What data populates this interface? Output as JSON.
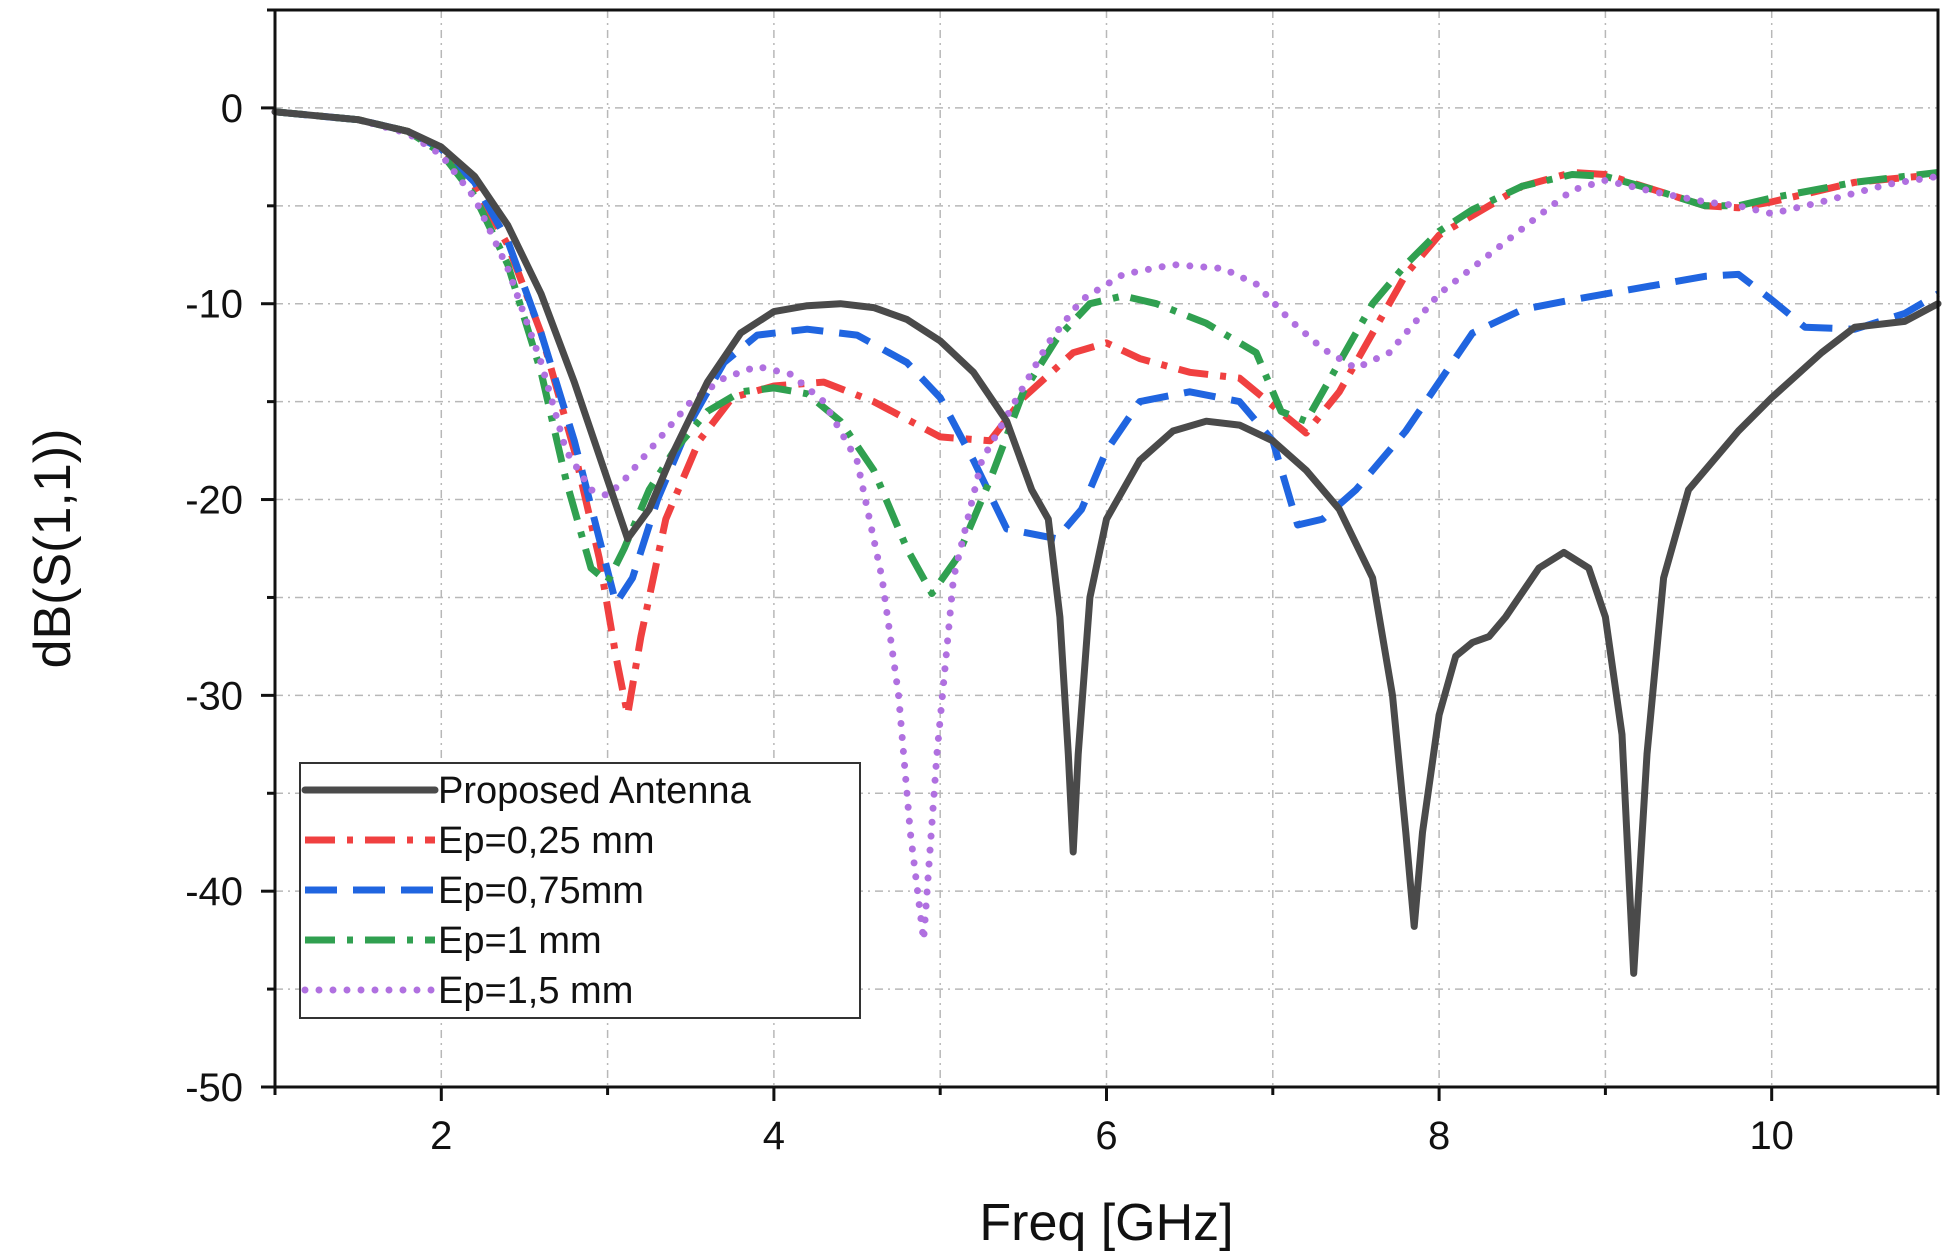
{
  "chart_data": {
    "type": "line",
    "title": "",
    "xlabel": "Freq [GHz]",
    "ylabel": "dB(S(1,1))",
    "xlim": [
      1,
      11
    ],
    "ylim": [
      -50,
      5
    ],
    "x_ticks": [
      2,
      4,
      6,
      8,
      10
    ],
    "x_tick_labels": [
      "2",
      "4",
      "6",
      "8",
      "10"
    ],
    "y_ticks": [
      0,
      -10,
      -20,
      -30,
      -40,
      -50
    ],
    "y_tick_labels": [
      "0",
      "-10",
      "-20",
      "-30",
      "-40",
      "-50"
    ],
    "grid": true,
    "legend_position": "bottom-left",
    "series": [
      {
        "name": "Proposed Antenna",
        "color": "#4a4a4a",
        "style": "solid",
        "points": [
          [
            1.0,
            -0.2
          ],
          [
            1.5,
            -0.6
          ],
          [
            1.8,
            -1.2
          ],
          [
            2.0,
            -2.0
          ],
          [
            2.2,
            -3.5
          ],
          [
            2.4,
            -6.0
          ],
          [
            2.6,
            -9.5
          ],
          [
            2.8,
            -14.0
          ],
          [
            3.0,
            -19.0
          ],
          [
            3.12,
            -22.0
          ],
          [
            3.25,
            -20.5
          ],
          [
            3.4,
            -17.5
          ],
          [
            3.6,
            -14.0
          ],
          [
            3.8,
            -11.5
          ],
          [
            4.0,
            -10.4
          ],
          [
            4.2,
            -10.1
          ],
          [
            4.4,
            -10.0
          ],
          [
            4.6,
            -10.2
          ],
          [
            4.8,
            -10.8
          ],
          [
            5.0,
            -11.9
          ],
          [
            5.2,
            -13.5
          ],
          [
            5.4,
            -16.0
          ],
          [
            5.55,
            -19.5
          ],
          [
            5.65,
            -21.0
          ],
          [
            5.72,
            -26.0
          ],
          [
            5.77,
            -33.0
          ],
          [
            5.8,
            -38.0
          ],
          [
            5.83,
            -33.0
          ],
          [
            5.9,
            -25.0
          ],
          [
            6.0,
            -21.0
          ],
          [
            6.2,
            -18.0
          ],
          [
            6.4,
            -16.5
          ],
          [
            6.6,
            -16.0
          ],
          [
            6.8,
            -16.2
          ],
          [
            7.0,
            -17.0
          ],
          [
            7.2,
            -18.5
          ],
          [
            7.4,
            -20.5
          ],
          [
            7.6,
            -24.0
          ],
          [
            7.72,
            -30.0
          ],
          [
            7.8,
            -37.0
          ],
          [
            7.85,
            -41.8
          ],
          [
            7.9,
            -37.0
          ],
          [
            8.0,
            -31.0
          ],
          [
            8.1,
            -28.0
          ],
          [
            8.2,
            -27.3
          ],
          [
            8.3,
            -27.0
          ],
          [
            8.4,
            -26.0
          ],
          [
            8.6,
            -23.5
          ],
          [
            8.75,
            -22.7
          ],
          [
            8.9,
            -23.5
          ],
          [
            9.0,
            -26.0
          ],
          [
            9.1,
            -32.0
          ],
          [
            9.17,
            -44.2
          ],
          [
            9.25,
            -33.0
          ],
          [
            9.35,
            -24.0
          ],
          [
            9.5,
            -19.5
          ],
          [
            9.8,
            -16.5
          ],
          [
            10.0,
            -14.8
          ],
          [
            10.3,
            -12.5
          ],
          [
            10.5,
            -11.2
          ],
          [
            10.8,
            -10.9
          ],
          [
            11.0,
            -10.0
          ]
        ]
      },
      {
        "name": "Ep=0,25 mm",
        "color": "#f04040",
        "style": "dash-dot",
        "points": [
          [
            1.0,
            -0.2
          ],
          [
            1.5,
            -0.6
          ],
          [
            1.8,
            -1.2
          ],
          [
            2.0,
            -2.2
          ],
          [
            2.2,
            -4.0
          ],
          [
            2.4,
            -7.0
          ],
          [
            2.6,
            -11.5
          ],
          [
            2.8,
            -17.5
          ],
          [
            2.95,
            -23.0
          ],
          [
            3.05,
            -28.0
          ],
          [
            3.12,
            -31.0
          ],
          [
            3.2,
            -27.0
          ],
          [
            3.35,
            -21.0
          ],
          [
            3.55,
            -17.0
          ],
          [
            3.75,
            -14.8
          ],
          [
            4.0,
            -14.2
          ],
          [
            4.3,
            -14.0
          ],
          [
            4.6,
            -15.0
          ],
          [
            5.0,
            -16.8
          ],
          [
            5.3,
            -17.0
          ],
          [
            5.5,
            -14.8
          ],
          [
            5.8,
            -12.5
          ],
          [
            6.0,
            -12.0
          ],
          [
            6.2,
            -12.8
          ],
          [
            6.5,
            -13.5
          ],
          [
            6.8,
            -13.8
          ],
          [
            7.0,
            -15.2
          ],
          [
            7.2,
            -16.6
          ],
          [
            7.4,
            -14.5
          ],
          [
            7.6,
            -11.5
          ],
          [
            7.8,
            -8.5
          ],
          [
            8.0,
            -6.5
          ],
          [
            8.2,
            -5.5
          ],
          [
            8.5,
            -4.0
          ],
          [
            8.8,
            -3.3
          ],
          [
            9.0,
            -3.4
          ],
          [
            9.3,
            -4.2
          ],
          [
            9.6,
            -5.0
          ],
          [
            9.8,
            -5.1
          ],
          [
            10.0,
            -4.8
          ],
          [
            10.5,
            -3.8
          ],
          [
            11.0,
            -3.4
          ]
        ]
      },
      {
        "name": "Ep=0,75mm",
        "color": "#2065e0",
        "style": "dash",
        "points": [
          [
            1.0,
            -0.2
          ],
          [
            1.5,
            -0.6
          ],
          [
            1.8,
            -1.2
          ],
          [
            2.0,
            -2.1
          ],
          [
            2.2,
            -3.8
          ],
          [
            2.4,
            -6.8
          ],
          [
            2.6,
            -11.5
          ],
          [
            2.8,
            -17.0
          ],
          [
            2.95,
            -22.0
          ],
          [
            3.05,
            -25.3
          ],
          [
            3.15,
            -24.0
          ],
          [
            3.3,
            -20.0
          ],
          [
            3.5,
            -16.0
          ],
          [
            3.7,
            -13.0
          ],
          [
            3.9,
            -11.6
          ],
          [
            4.2,
            -11.3
          ],
          [
            4.5,
            -11.6
          ],
          [
            4.8,
            -13.0
          ],
          [
            5.0,
            -14.8
          ],
          [
            5.2,
            -18.0
          ],
          [
            5.4,
            -21.5
          ],
          [
            5.7,
            -22.0
          ],
          [
            5.85,
            -20.5
          ],
          [
            6.0,
            -17.5
          ],
          [
            6.2,
            -15.0
          ],
          [
            6.5,
            -14.5
          ],
          [
            6.8,
            -15.0
          ],
          [
            7.0,
            -17.0
          ],
          [
            7.15,
            -21.3
          ],
          [
            7.3,
            -21.0
          ],
          [
            7.5,
            -19.5
          ],
          [
            7.8,
            -16.5
          ],
          [
            8.0,
            -14.0
          ],
          [
            8.2,
            -11.5
          ],
          [
            8.5,
            -10.3
          ],
          [
            8.8,
            -9.8
          ],
          [
            9.2,
            -9.2
          ],
          [
            9.6,
            -8.6
          ],
          [
            9.8,
            -8.5
          ],
          [
            10.0,
            -9.8
          ],
          [
            10.2,
            -11.2
          ],
          [
            10.5,
            -11.3
          ],
          [
            10.8,
            -10.5
          ],
          [
            11.0,
            -9.5
          ]
        ]
      },
      {
        "name": "Ep=1 mm",
        "color": "#30a050",
        "style": "dash-dot",
        "points": [
          [
            1.0,
            -0.2
          ],
          [
            1.5,
            -0.6
          ],
          [
            1.8,
            -1.2
          ],
          [
            2.0,
            -2.3
          ],
          [
            2.2,
            -4.5
          ],
          [
            2.4,
            -8.0
          ],
          [
            2.6,
            -13.5
          ],
          [
            2.75,
            -19.0
          ],
          [
            2.9,
            -23.5
          ],
          [
            3.0,
            -24.2
          ],
          [
            3.1,
            -22.5
          ],
          [
            3.25,
            -19.5
          ],
          [
            3.4,
            -17.5
          ],
          [
            3.6,
            -15.5
          ],
          [
            3.8,
            -14.5
          ],
          [
            4.0,
            -14.3
          ],
          [
            4.2,
            -14.6
          ],
          [
            4.4,
            -16.0
          ],
          [
            4.6,
            -18.5
          ],
          [
            4.8,
            -22.5
          ],
          [
            4.95,
            -24.8
          ],
          [
            5.1,
            -23.0
          ],
          [
            5.3,
            -19.0
          ],
          [
            5.5,
            -14.5
          ],
          [
            5.7,
            -11.8
          ],
          [
            5.9,
            -10.0
          ],
          [
            6.1,
            -9.6
          ],
          [
            6.3,
            -10.0
          ],
          [
            6.6,
            -11.0
          ],
          [
            6.9,
            -12.5
          ],
          [
            7.05,
            -15.5
          ],
          [
            7.2,
            -16.0
          ],
          [
            7.4,
            -13.0
          ],
          [
            7.6,
            -10.0
          ],
          [
            7.8,
            -8.0
          ],
          [
            8.0,
            -6.3
          ],
          [
            8.2,
            -5.2
          ],
          [
            8.5,
            -4.0
          ],
          [
            8.8,
            -3.4
          ],
          [
            9.0,
            -3.5
          ],
          [
            9.3,
            -4.2
          ],
          [
            9.6,
            -5.0
          ],
          [
            9.8,
            -5.0
          ],
          [
            10.0,
            -4.6
          ],
          [
            10.5,
            -3.8
          ],
          [
            11.0,
            -3.3
          ]
        ]
      },
      {
        "name": "Ep=1,5 mm",
        "color": "#b070e0",
        "style": "dot",
        "points": [
          [
            1.0,
            -0.2
          ],
          [
            1.5,
            -0.6
          ],
          [
            1.8,
            -1.3
          ],
          [
            2.0,
            -2.4
          ],
          [
            2.2,
            -4.6
          ],
          [
            2.4,
            -8.2
          ],
          [
            2.6,
            -13.0
          ],
          [
            2.75,
            -17.5
          ],
          [
            2.9,
            -19.5
          ],
          [
            3.0,
            -19.8
          ],
          [
            3.1,
            -19.0
          ],
          [
            3.2,
            -18.0
          ],
          [
            3.35,
            -16.5
          ],
          [
            3.5,
            -15.0
          ],
          [
            3.7,
            -13.8
          ],
          [
            3.9,
            -13.2
          ],
          [
            4.1,
            -13.6
          ],
          [
            4.3,
            -15.0
          ],
          [
            4.5,
            -18.0
          ],
          [
            4.65,
            -24.0
          ],
          [
            4.75,
            -30.0
          ],
          [
            4.82,
            -37.0
          ],
          [
            4.9,
            -42.5
          ],
          [
            4.98,
            -33.0
          ],
          [
            5.08,
            -24.0
          ],
          [
            5.25,
            -18.0
          ],
          [
            5.45,
            -15.0
          ],
          [
            5.65,
            -12.0
          ],
          [
            5.85,
            -9.8
          ],
          [
            6.1,
            -8.5
          ],
          [
            6.4,
            -8.0
          ],
          [
            6.7,
            -8.2
          ],
          [
            6.9,
            -9.0
          ],
          [
            7.1,
            -10.8
          ],
          [
            7.3,
            -12.3
          ],
          [
            7.5,
            -13.3
          ],
          [
            7.7,
            -12.5
          ],
          [
            8.0,
            -9.5
          ],
          [
            8.3,
            -7.5
          ],
          [
            8.6,
            -5.5
          ],
          [
            8.8,
            -4.2
          ],
          [
            9.0,
            -3.7
          ],
          [
            9.3,
            -4.3
          ],
          [
            9.6,
            -4.8
          ],
          [
            9.8,
            -5.0
          ],
          [
            10.0,
            -5.4
          ],
          [
            10.3,
            -4.8
          ],
          [
            10.7,
            -3.9
          ],
          [
            11.0,
            -3.5
          ]
        ]
      }
    ]
  }
}
